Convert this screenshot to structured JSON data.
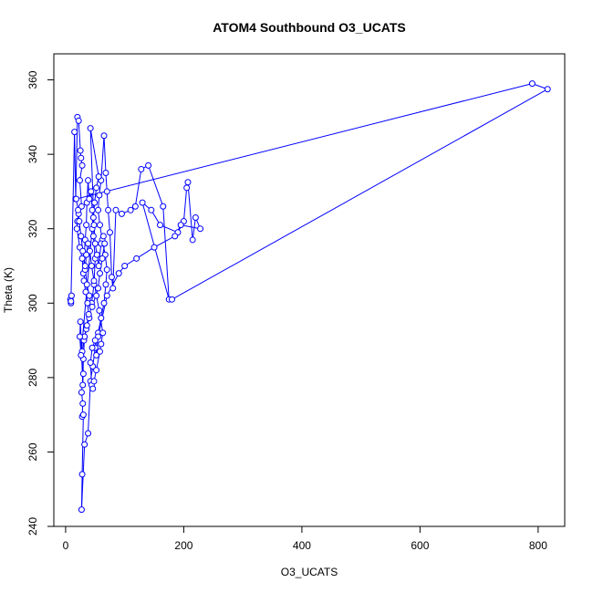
{
  "chart_data": {
    "type": "scatter",
    "title": "ATOM4 Southbound O3_UCATS",
    "xlabel": "O3_UCATS",
    "ylabel": "Theta (K)",
    "xlim": [
      -20,
      845
    ],
    "ylim": [
      240,
      367
    ],
    "x_ticks": [
      0,
      200,
      400,
      600,
      800
    ],
    "y_ticks": [
      240,
      260,
      280,
      300,
      320,
      340,
      360
    ],
    "grid": false,
    "legend": "none",
    "colors": {
      "series": "#0000ff",
      "axis": "#000000",
      "background": "#ffffff"
    },
    "series": [
      {
        "marker": "open-circle",
        "line": true,
        "points": [
          [
            8,
            301
          ],
          [
            9,
            300
          ],
          [
            10,
            302
          ],
          [
            9,
            300.5
          ],
          [
            15,
            346
          ],
          [
            17,
            328
          ],
          [
            20,
            350
          ],
          [
            22,
            349
          ],
          [
            25,
            341
          ],
          [
            26,
            339
          ],
          [
            28,
            337
          ],
          [
            24,
            333
          ],
          [
            27,
            326
          ],
          [
            22,
            324
          ],
          [
            20,
            322
          ],
          [
            19,
            320
          ],
          [
            24,
            315
          ],
          [
            28,
            312
          ],
          [
            30,
            308
          ],
          [
            33,
            317
          ],
          [
            35,
            321
          ],
          [
            36,
            327
          ],
          [
            38,
            333
          ],
          [
            40,
            328
          ],
          [
            43,
            330
          ],
          [
            45,
            325
          ],
          [
            47,
            318
          ],
          [
            50,
            312
          ],
          [
            48,
            305
          ],
          [
            44,
            300
          ],
          [
            40,
            296
          ],
          [
            35,
            293
          ],
          [
            31,
            290
          ],
          [
            28,
            287
          ],
          [
            30,
            281
          ],
          [
            27,
            276
          ],
          [
            29,
            273
          ],
          [
            28,
            269.5
          ],
          [
            30,
            270
          ],
          [
            28,
            254
          ],
          [
            27,
            244.5
          ],
          [
            32,
            262
          ],
          [
            38,
            265
          ],
          [
            42,
            279
          ],
          [
            46,
            283
          ],
          [
            50,
            288
          ],
          [
            55,
            292
          ],
          [
            60,
            296
          ],
          [
            65,
            300
          ],
          [
            68,
            305
          ],
          [
            70,
            309
          ],
          [
            67,
            313
          ],
          [
            62,
            317
          ],
          [
            58,
            321
          ],
          [
            55,
            325
          ],
          [
            57,
            329
          ],
          [
            60,
            333
          ],
          [
            65,
            345
          ],
          [
            68,
            335
          ],
          [
            70,
            330
          ],
          [
            72,
            325
          ],
          [
            75,
            319
          ],
          [
            78,
            307
          ],
          [
            80,
            304
          ],
          [
            85,
            325
          ],
          [
            95,
            324
          ],
          [
            110,
            325
          ],
          [
            118,
            326
          ],
          [
            128,
            336
          ],
          [
            140,
            337
          ],
          [
            165,
            326
          ],
          [
            175,
            301
          ],
          [
            130,
            327
          ],
          [
            145,
            325
          ],
          [
            160,
            321
          ],
          [
            190,
            319
          ],
          [
            200,
            322
          ],
          [
            205,
            331
          ],
          [
            207,
            332.5
          ],
          [
            215,
            317
          ],
          [
            220,
            323
          ],
          [
            228,
            320
          ],
          [
            195,
            321
          ],
          [
            185,
            318
          ],
          [
            150,
            315
          ],
          [
            120,
            312
          ],
          [
            100,
            310
          ],
          [
            90,
            308
          ],
          [
            70,
            302
          ],
          [
            55,
            291
          ],
          [
            52,
            286
          ],
          [
            50,
            290
          ],
          [
            45,
            288
          ],
          [
            42,
            284
          ],
          [
            44,
            278
          ],
          [
            46,
            277
          ],
          [
            48,
            279
          ],
          [
            52,
            282
          ],
          [
            58,
            287
          ],
          [
            60,
            289
          ],
          [
            63,
            292
          ],
          [
            57,
            298
          ],
          [
            52,
            302
          ],
          [
            48,
            306
          ],
          [
            44,
            310
          ],
          [
            41,
            314
          ],
          [
            38,
            316
          ],
          [
            35,
            313
          ],
          [
            33,
            309
          ],
          [
            31,
            306
          ],
          [
            34,
            303
          ],
          [
            37,
            300
          ],
          [
            39,
            297
          ],
          [
            36,
            294
          ],
          [
            32,
            291
          ],
          [
            30,
            285
          ],
          [
            29,
            278
          ],
          [
            25,
            295
          ],
          [
            24,
            291
          ],
          [
            26,
            286
          ],
          [
            45,
            320
          ],
          [
            47,
            323
          ],
          [
            49,
            327
          ],
          [
            52,
            331
          ],
          [
            56,
            334
          ],
          [
            42,
            347
          ],
          [
            48,
            321
          ],
          [
            50,
            316
          ],
          [
            53,
            313
          ],
          [
            56,
            310
          ],
          [
            60,
            316
          ],
          [
            64,
            318
          ],
          [
            66,
            316
          ],
          [
            62,
            312
          ],
          [
            58,
            308
          ],
          [
            55,
            304
          ],
          [
            45,
            299
          ],
          [
            40,
            302
          ],
          [
            36,
            305
          ],
          [
            33,
            310
          ],
          [
            29,
            314
          ],
          [
            26,
            318
          ],
          [
            23,
            322
          ],
          [
            21,
            325
          ],
          [
            18,
            328
          ],
          [
            790,
            359
          ],
          [
            816,
            357.5
          ],
          [
            180,
            301
          ]
        ]
      }
    ]
  }
}
